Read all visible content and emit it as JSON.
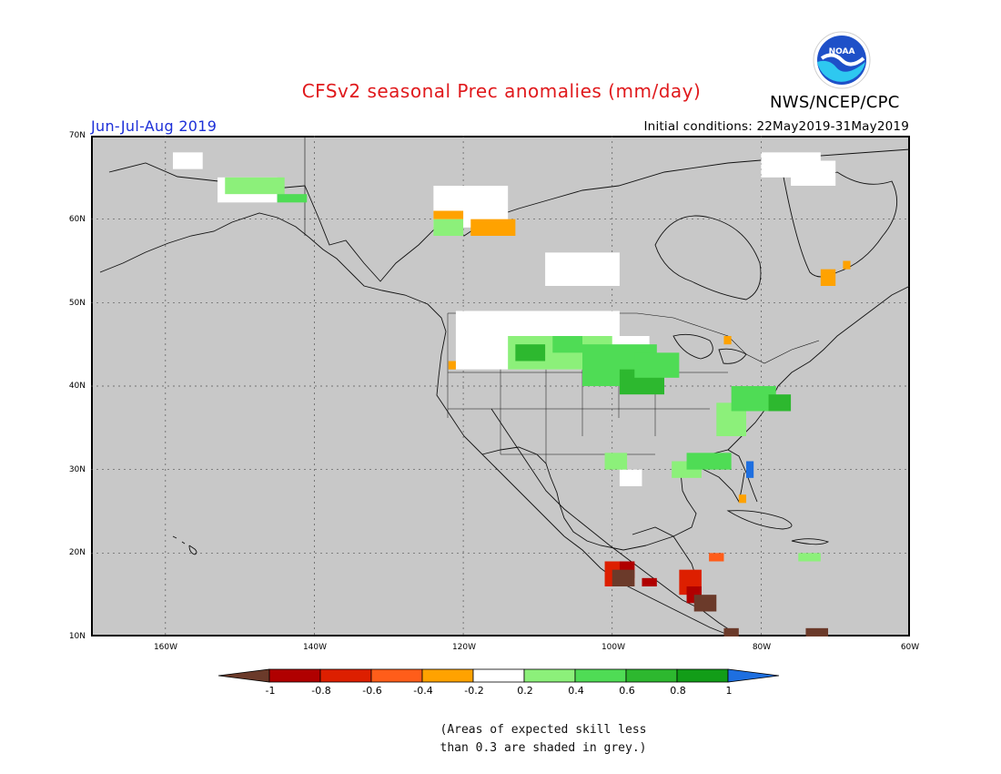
{
  "title": "CFSv2 seasonal Prec anomalies (mm/day)",
  "agency": "NWS/NCEP/CPC",
  "logo": {
    "text": "NOAA",
    "colors": {
      "outer": "#ffffff",
      "inner": "#1e50c8",
      "wave": "#2ec8f0"
    }
  },
  "season": "Jun-Jul-Aug 2019",
  "initial_conditions": "Initial conditions: 22May2019-31May2019",
  "map": {
    "lat_labels": [
      "70N",
      "60N",
      "50N",
      "40N",
      "30N",
      "20N",
      "10N"
    ],
    "lon_labels": [
      "160W",
      "140W",
      "120W",
      "100W",
      "80W",
      "60W"
    ],
    "lon_range": [
      -170,
      -60
    ],
    "lat_range": [
      10,
      70
    ],
    "grid": true,
    "background_color": "#c8c8c8"
  },
  "colorbar": {
    "labels": [
      "-1",
      "-0.8",
      "-0.6",
      "-0.4",
      "-0.2",
      "0.2",
      "0.4",
      "0.6",
      "0.8",
      "1"
    ],
    "colors": [
      "#6b3a2a",
      "#b00000",
      "#dd1f00",
      "#ff5d1a",
      "#ffa200",
      "#ffffff",
      "#8cf07a",
      "#4fdc55",
      "#2db82f",
      "#129d18",
      "#1e6fe0"
    ]
  },
  "note": {
    "line1": "(Areas of expected skill less",
    "line2": "than 0.3 are shaded in grey.)"
  }
}
